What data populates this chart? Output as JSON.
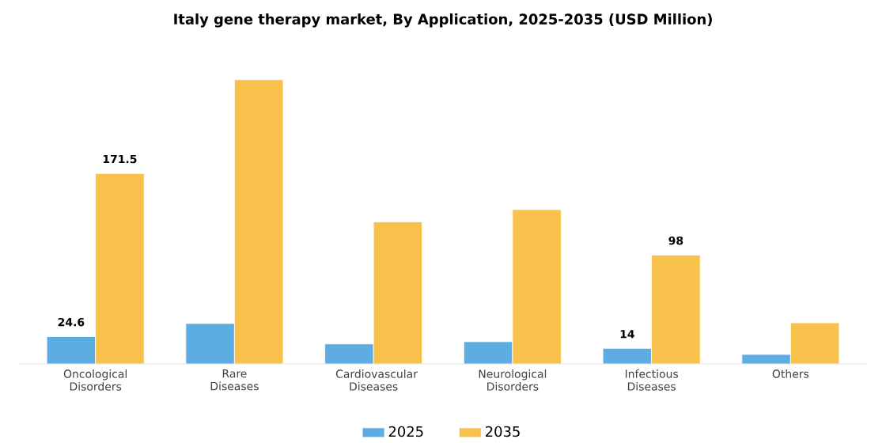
{
  "chart_data": {
    "type": "bar",
    "title": "Italy gene therapy market, By Application, 2025-2035 (USD Million)",
    "categories": [
      "Oncological Disorders",
      "Rare Diseases",
      "Cardiovascular Diseases",
      "Neurological Disorders",
      "Infectious Diseases",
      "Others"
    ],
    "series": [
      {
        "name": "2025",
        "color": "#5dade2",
        "values": [
          24.6,
          36.4,
          18,
          20,
          14,
          8.5
        ],
        "value_labels": [
          "24.6",
          null,
          null,
          null,
          "14",
          null
        ]
      },
      {
        "name": "2035",
        "color": "#f7c14c",
        "values": [
          171.5,
          256,
          128,
          139,
          98,
          37
        ],
        "value_labels": [
          "171.5",
          null,
          null,
          null,
          "98",
          null
        ]
      }
    ],
    "legend": "bottom"
  }
}
